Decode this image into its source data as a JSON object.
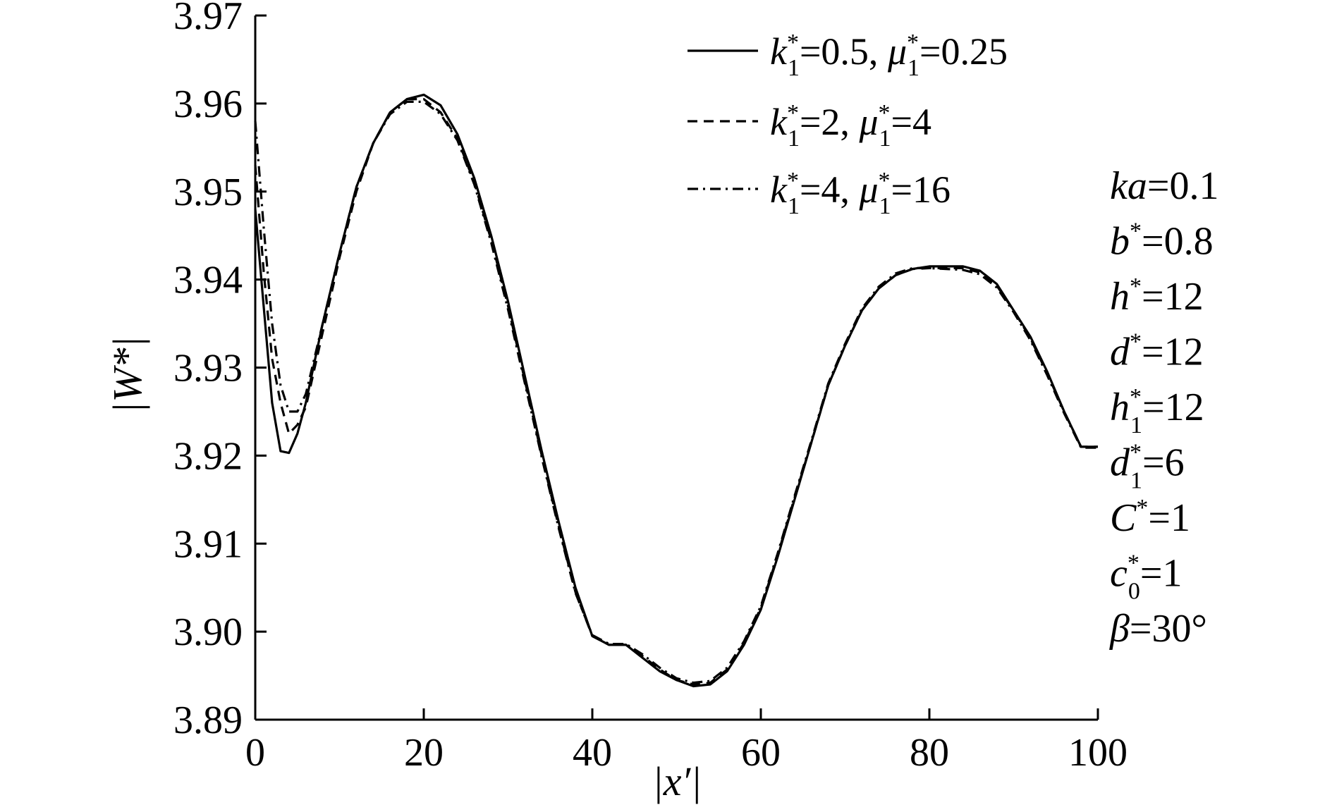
{
  "chart_data": {
    "type": "line",
    "xlabel": "|x′|",
    "ylabel": "|W*|",
    "xlim": [
      0,
      100
    ],
    "ylim": [
      3.89,
      3.97
    ],
    "x_ticks": [
      "0",
      "20",
      "40",
      "60",
      "80",
      "100"
    ],
    "y_ticks": [
      "3.89",
      "3.90",
      "3.91",
      "3.92",
      "3.93",
      "3.94",
      "3.95",
      "3.96",
      "3.97"
    ],
    "grid": false,
    "legend_position": "top-center",
    "series": [
      {
        "name": "k1*=0.5, μ1*=0.25",
        "line_style": "solid",
        "x": [
          0,
          1,
          2,
          3,
          4,
          5,
          6,
          8,
          10,
          12,
          14,
          16,
          18,
          20,
          22,
          24,
          26,
          28,
          30,
          32,
          34,
          36,
          38,
          40,
          42,
          44,
          46,
          48,
          50,
          52,
          54,
          56,
          58,
          60,
          62,
          64,
          66,
          68,
          70,
          72,
          74,
          76,
          78,
          80,
          82,
          84,
          86,
          88,
          90,
          92,
          94,
          96,
          98,
          100
        ],
        "y": [
          3.948,
          3.937,
          3.926,
          3.9205,
          3.9203,
          3.9225,
          3.926,
          3.935,
          3.943,
          3.9505,
          3.9555,
          3.959,
          3.9605,
          3.961,
          3.9598,
          3.9565,
          3.9515,
          3.945,
          3.9375,
          3.929,
          3.9205,
          3.9125,
          3.905,
          3.8995,
          3.8985,
          3.8985,
          3.897,
          3.8955,
          3.8945,
          3.8938,
          3.894,
          3.8955,
          3.8985,
          3.9025,
          3.9085,
          3.915,
          3.9215,
          3.928,
          3.9325,
          3.9365,
          3.939,
          3.9405,
          3.9412,
          3.9415,
          3.9415,
          3.9415,
          3.941,
          3.9395,
          3.9365,
          3.9335,
          3.9295,
          3.925,
          3.921,
          3.921
        ]
      },
      {
        "name": "k1*=2, μ1*=4",
        "line_style": "dashed",
        "x": [
          0,
          1,
          2,
          3,
          4,
          5,
          6,
          8,
          10,
          12,
          14,
          16,
          18,
          20,
          22,
          24,
          26,
          28,
          30,
          32,
          34,
          36,
          38,
          40,
          42,
          44,
          46,
          48,
          50,
          52,
          54,
          56,
          58,
          60,
          62,
          64,
          66,
          68,
          70,
          72,
          74,
          76,
          78,
          80,
          82,
          84,
          86,
          88,
          90,
          92,
          94,
          96,
          98,
          100
        ],
        "y": [
          3.953,
          3.941,
          3.931,
          3.926,
          3.9225,
          3.9235,
          3.9255,
          3.934,
          3.9425,
          3.95,
          3.9555,
          3.959,
          3.9605,
          3.9605,
          3.959,
          3.956,
          3.951,
          3.9445,
          3.937,
          3.9285,
          3.92,
          3.912,
          3.9045,
          3.8995,
          3.8985,
          3.8985,
          3.8972,
          3.8957,
          3.8945,
          3.894,
          3.8942,
          3.8957,
          3.8987,
          3.9027,
          3.9087,
          3.9152,
          3.9215,
          3.928,
          3.9325,
          3.9365,
          3.939,
          3.9405,
          3.9412,
          3.9413,
          3.9413,
          3.9413,
          3.9408,
          3.9393,
          3.9365,
          3.9333,
          3.9293,
          3.925,
          3.921,
          3.921
        ]
      },
      {
        "name": "k1*=4, μ1*=16",
        "line_style": "dashdot",
        "x": [
          0,
          1,
          2,
          3,
          4,
          5,
          6,
          8,
          10,
          12,
          14,
          16,
          18,
          20,
          22,
          24,
          26,
          28,
          30,
          32,
          34,
          36,
          38,
          40,
          42,
          44,
          46,
          48,
          50,
          52,
          54,
          56,
          58,
          60,
          62,
          64,
          66,
          68,
          70,
          72,
          74,
          76,
          78,
          80,
          82,
          84,
          86,
          88,
          90,
          92,
          94,
          96,
          98,
          100
        ],
        "y": [
          3.958,
          3.946,
          3.935,
          3.928,
          3.925,
          3.925,
          3.927,
          3.935,
          3.943,
          3.9505,
          3.9555,
          3.9588,
          3.9602,
          3.9602,
          3.9588,
          3.9558,
          3.9508,
          3.9442,
          3.9366,
          3.9282,
          3.9198,
          3.9118,
          3.9044,
          3.8996,
          3.8986,
          3.8986,
          3.8974,
          3.8959,
          3.8947,
          3.8942,
          3.8944,
          3.8959,
          3.8989,
          3.9029,
          3.9089,
          3.9154,
          3.9217,
          3.9282,
          3.9327,
          3.9367,
          3.9392,
          3.9407,
          3.9413,
          3.9413,
          3.9412,
          3.9411,
          3.9406,
          3.9391,
          3.9363,
          3.9331,
          3.9291,
          3.9248,
          3.9209,
          3.9209
        ]
      }
    ],
    "legend_entries": [
      {
        "k": "k",
        "k_sup": "*",
        "k_sub": "1",
        "k_val": "=0.5, ",
        "mu": "μ",
        "mu_sup": "*",
        "mu_sub": "1",
        "mu_val": "=0.25"
      },
      {
        "k": "k",
        "k_sup": "*",
        "k_sub": "1",
        "k_val": "=2, ",
        "mu": "μ",
        "mu_sup": "*",
        "mu_sub": "1",
        "mu_val": "=4"
      },
      {
        "k": "k",
        "k_sup": "*",
        "k_sub": "1",
        "k_val": "=4, ",
        "mu": "μ",
        "mu_sup": "*",
        "mu_sub": "1",
        "mu_val": "=16"
      }
    ],
    "parameters": [
      {
        "sym": "ka",
        "sup": "",
        "sub": "",
        "val": "=0.1"
      },
      {
        "sym": "b",
        "sup": "*",
        "sub": "",
        "val": "=0.8"
      },
      {
        "sym": "h",
        "sup": "*",
        "sub": "",
        "val": "=12"
      },
      {
        "sym": "d",
        "sup": "*",
        "sub": "",
        "val": "=12"
      },
      {
        "sym": "h",
        "sup": "*",
        "sub": "1",
        "val": "=12"
      },
      {
        "sym": "d",
        "sup": "*",
        "sub": "1",
        "val": "=6"
      },
      {
        "sym": "C",
        "sup": "*",
        "sub": "",
        "val": "=1"
      },
      {
        "sym": "c",
        "sup": "*",
        "sub": "0",
        "val": "=1"
      },
      {
        "sym": "β",
        "sup": "",
        "sub": "",
        "val": "=30°"
      }
    ],
    "line_color": "#000000"
  }
}
